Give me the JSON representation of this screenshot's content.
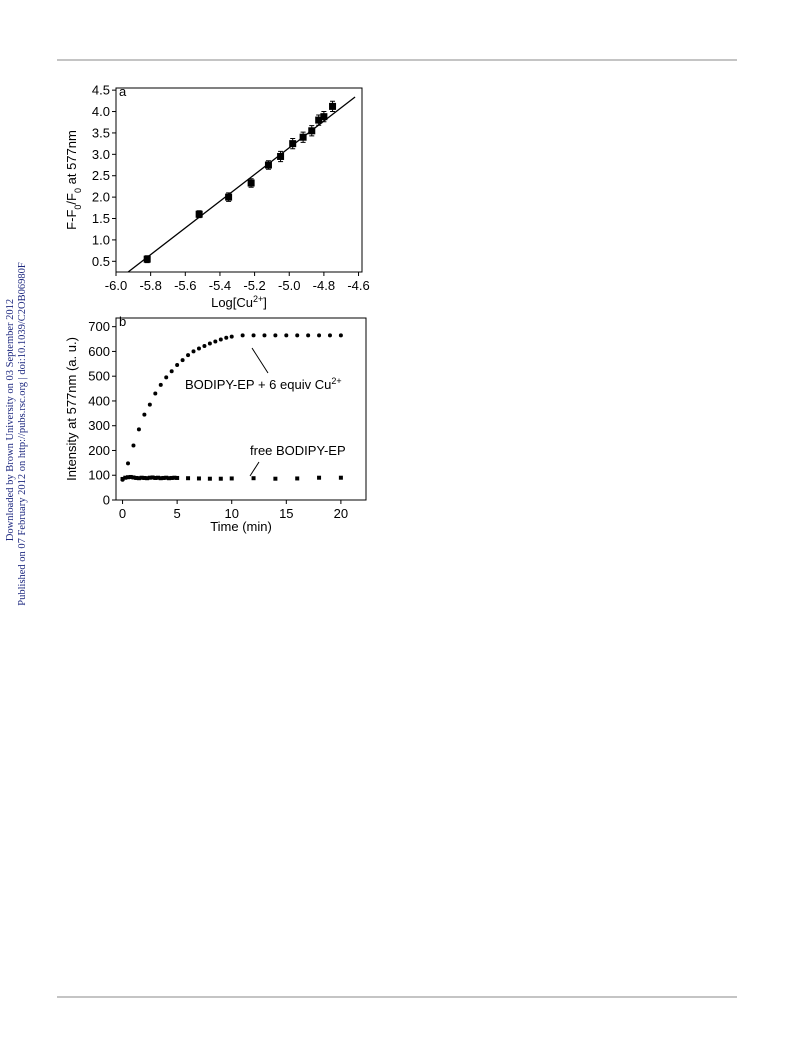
{
  "side_text": [
    "Downloaded by Brown University on 03 September 2012",
    "Published on 07 February 2012 on http://pubs.rsc.org | doi:10.1039/C2OB06980F"
  ],
  "chart_data": [
    {
      "type": "scatter",
      "panel_label": "a",
      "xlabel": [
        "Log[Cu",
        "2+",
        "]"
      ],
      "ylabel": [
        "F-F",
        "0",
        "/F",
        "0",
        " at 577nm"
      ],
      "xlim": [
        -6.0,
        -4.58
      ],
      "ylim": [
        0.25,
        4.55
      ],
      "xticks": [
        {
          "value": -6,
          "label": "-6.0"
        },
        -5.8,
        -5.6,
        -5.4,
        -5.2,
        {
          "value": -5,
          "label": "-5.0"
        },
        -4.8,
        -4.6
      ],
      "yticks": [
        0.5,
        {
          "value": 1,
          "label": "1.0"
        },
        1.5,
        {
          "value": 2,
          "label": "2.0"
        },
        2.5,
        {
          "value": 3,
          "label": "3.0"
        },
        3.5,
        {
          "value": 4,
          "label": "4.0"
        },
        4.5
      ],
      "series": [
        {
          "color": "#000000",
          "marker": "square",
          "x": [
            -5.82,
            -5.52,
            -5.35,
            -5.22,
            -5.12,
            -5.05,
            -4.98,
            -4.92,
            -4.87,
            -4.83,
            -4.8,
            -4.75
          ],
          "y": [
            0.55,
            1.6,
            2.0,
            2.33,
            2.75,
            2.95,
            3.25,
            3.4,
            3.55,
            3.8,
            3.88,
            4.12
          ],
          "errors": [
            0.08,
            0.08,
            0.1,
            0.1,
            0.1,
            0.12,
            0.12,
            0.12,
            0.12,
            0.12,
            0.12,
            0.12
          ]
        }
      ],
      "fit_line": {
        "color": "#000000",
        "x": [
          -5.93,
          -4.62
        ],
        "y": [
          0.25,
          4.34
        ]
      }
    },
    {
      "type": "scatter",
      "panel_label": "b",
      "xlabel": [
        "Time (min)"
      ],
      "ylabel": [
        "Intensity at 577nm (a. u.)"
      ],
      "xlim": [
        -0.6,
        22.3
      ],
      "ylim": [
        0,
        735
      ],
      "xticks": [
        0,
        5,
        10,
        15,
        20
      ],
      "yticks": [
        0,
        100,
        200,
        300,
        400,
        500,
        600,
        700
      ],
      "series": [
        {
          "color": "#000000",
          "marker": "circle",
          "x": [
            0,
            0.5,
            1,
            1.5,
            2,
            2.5,
            3,
            3.5,
            4,
            4.5,
            5,
            5.5,
            6,
            6.5,
            7,
            7.5,
            8,
            8.5,
            9,
            9.5,
            10,
            11,
            12,
            13,
            14,
            15,
            16,
            17,
            18,
            19,
            20
          ],
          "y": [
            82,
            148,
            220,
            285,
            345,
            385,
            430,
            465,
            495,
            520,
            545,
            565,
            585,
            600,
            612,
            622,
            632,
            640,
            648,
            655,
            660,
            665,
            665,
            665,
            665,
            665,
            665,
            665,
            665,
            665,
            665
          ]
        },
        {
          "color": "#000000",
          "marker": "square",
          "x": [
            0,
            0.25,
            0.5,
            0.75,
            1,
            1.25,
            1.5,
            1.75,
            2,
            2.25,
            2.5,
            2.75,
            3,
            3.25,
            3.5,
            3.75,
            4,
            4.25,
            4.5,
            4.75,
            5,
            6,
            7,
            8,
            9,
            10,
            12,
            14,
            16,
            18,
            20
          ],
          "y": [
            85,
            90,
            92,
            93,
            91,
            89,
            88,
            90,
            89,
            88,
            90,
            91,
            89,
            90,
            88,
            89,
            90,
            88,
            89,
            90,
            89,
            88,
            87,
            86,
            86,
            87,
            88,
            86,
            87,
            90,
            90
          ]
        }
      ],
      "annotations": [
        {
          "text": [
            "BODIPY-EP + 6 equiv Cu",
            "2+"
          ]
        },
        {
          "text": [
            "free BODIPY-EP"
          ]
        }
      ]
    }
  ]
}
